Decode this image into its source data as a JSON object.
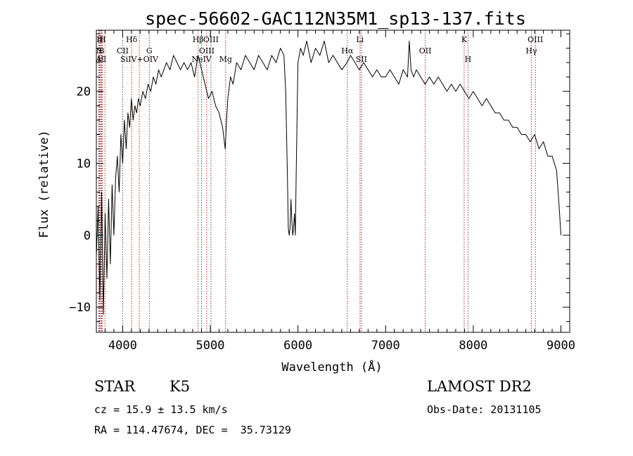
{
  "chart_data": {
    "type": "line",
    "title": "spec-56602-GAC112N35M1_sp13-137.fits",
    "xlabel": "Wavelength (Å)",
    "ylabel": "Flux (relative)",
    "xlim": [
      3700,
      9100
    ],
    "ylim": [
      -13.5,
      28.5
    ],
    "x_ticks": [
      "4000",
      "5000",
      "6000",
      "7000",
      "8000",
      "9000"
    ],
    "y_ticks": [
      "−10",
      "0",
      "10",
      "20"
    ],
    "line_color": "#000000",
    "marker_color": "#8b1a1a",
    "series": [
      {
        "x": [
          3700,
          3720,
          3740,
          3760,
          3780,
          3800,
          3820,
          3840,
          3860,
          3880,
          3900,
          3920,
          3940,
          3960,
          3980,
          4000,
          4020,
          4040,
          4060,
          4080,
          4100,
          4120,
          4140,
          4160,
          4180,
          4200,
          4230,
          4260,
          4290,
          4320,
          4350,
          4380,
          4410,
          4440,
          4470,
          4500,
          4540,
          4580,
          4620,
          4660,
          4700,
          4740,
          4780,
          4820,
          4860,
          4900,
          4940,
          4980,
          5020,
          5060,
          5100,
          5140,
          5170,
          5185,
          5200,
          5230,
          5260,
          5300,
          5350,
          5400,
          5450,
          5500,
          5550,
          5600,
          5650,
          5700,
          5750,
          5800,
          5840,
          5860,
          5880,
          5890,
          5900,
          5910,
          5920,
          5930,
          5940,
          5950,
          5960,
          5970,
          5980,
          6000,
          6030,
          6060,
          6100,
          6150,
          6200,
          6250,
          6300,
          6350,
          6400,
          6450,
          6500,
          6560,
          6600,
          6650,
          6700,
          6750,
          6800,
          6850,
          6900,
          6950,
          7000,
          7050,
          7100,
          7150,
          7200,
          7250,
          7270,
          7290,
          7320,
          7350,
          7400,
          7450,
          7500,
          7550,
          7600,
          7650,
          7700,
          7750,
          7800,
          7850,
          7900,
          7950,
          8000,
          8050,
          8100,
          8150,
          8200,
          8250,
          8300,
          8350,
          8400,
          8450,
          8500,
          8550,
          8600,
          8650,
          8700,
          8750,
          8800,
          8850,
          8900,
          8950,
          8980,
          9000
        ],
        "y": [
          -3,
          4,
          -9,
          6,
          -11,
          3,
          -6,
          5,
          -4,
          7,
          0,
          8,
          11,
          6,
          14,
          10,
          16,
          12,
          17,
          15,
          19,
          16,
          18,
          17,
          19,
          18,
          20,
          19,
          21,
          20,
          22,
          21,
          23,
          22,
          23,
          24,
          23,
          25,
          24,
          23,
          24,
          23,
          24,
          22,
          25,
          23,
          21,
          19,
          20,
          18,
          17,
          15,
          12,
          16,
          19,
          22,
          21,
          24,
          23,
          25,
          24,
          23,
          25,
          24,
          23,
          25,
          24,
          26,
          25,
          20,
          8,
          1,
          0,
          1,
          5,
          2,
          0,
          1,
          3,
          0,
          9,
          24,
          26,
          25,
          27,
          24,
          26,
          25,
          27,
          24,
          25,
          24,
          23,
          24,
          25,
          24,
          23,
          24,
          23,
          22,
          23,
          22,
          22,
          23,
          22,
          21,
          23,
          22,
          27,
          23,
          22,
          23,
          22,
          21,
          22,
          21,
          22,
          21,
          20,
          21,
          20,
          21,
          20,
          19,
          20,
          19,
          18,
          19,
          18,
          17,
          17,
          16,
          16,
          15,
          15,
          14,
          14,
          13,
          14,
          12,
          13,
          11,
          11,
          9,
          4,
          0
        ]
      }
    ],
    "line_markers": [
      {
        "x": 3726,
        "label": "A"
      },
      {
        "x": 3734,
        "label": "N"
      },
      {
        "x": 3740,
        "label": "H"
      },
      {
        "x": 3751,
        "label": "H"
      },
      {
        "x": 3760,
        "label": "B"
      },
      {
        "x": 3771,
        "label": "H"
      },
      {
        "x": 3798,
        "label": "I"
      },
      {
        "x": 4000,
        "label": "CII"
      },
      {
        "x": 4102,
        "label": "Hδ"
      },
      {
        "x": 4190,
        "label": "SiIV+OIV"
      },
      {
        "x": 4304,
        "label": "G"
      },
      {
        "x": 4861,
        "label": "Hβ"
      },
      {
        "x": 4900,
        "label": "NeIV"
      },
      {
        "x": 4959,
        "label": "OIII"
      },
      {
        "x": 5007,
        "label": "OIII"
      },
      {
        "x": 5175,
        "label": "Mg"
      },
      {
        "x": 6563,
        "label": "Hα"
      },
      {
        "x": 6708,
        "label": "Li"
      },
      {
        "x": 6724,
        "label": "SII"
      },
      {
        "x": 7452,
        "label": "OII"
      },
      {
        "x": 7896,
        "label": "K"
      },
      {
        "x": 7940,
        "label": "H"
      },
      {
        "x": 8662,
        "label": "Hγ"
      },
      {
        "x": 8708,
        "label": "OIII"
      }
    ]
  },
  "info": {
    "class": "STAR",
    "subclass": "K5",
    "survey": "LAMOST DR2",
    "cz": "cz = 15.9 ± 13.5 km/s",
    "obs_date": "Obs-Date: 20131105",
    "radec": "RA = 114.47674, DEC =  35.73129"
  }
}
